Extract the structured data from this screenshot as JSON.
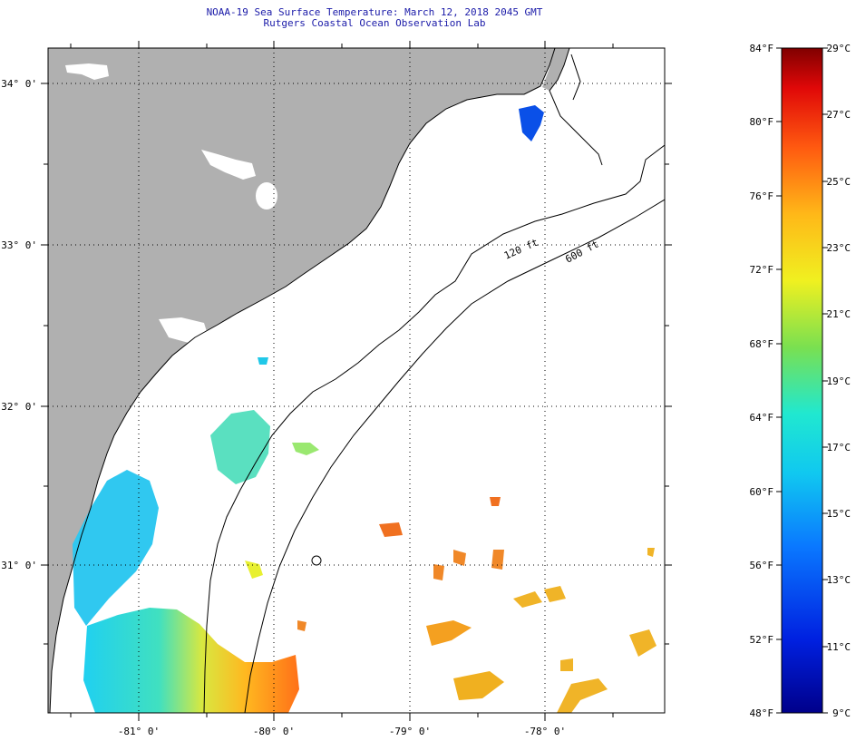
{
  "header": {
    "title_line1": "NOAA-19 Sea Surface Temperature:  March 12, 2018 2045 GMT",
    "title_line2": "Rutgers Coastal Ocean Observation Lab"
  },
  "map": {
    "lon_labels": [
      "-81° 0'",
      "-80° 0'",
      "-79° 0'",
      "-78° 0'"
    ],
    "lat_labels": [
      "34° 0'",
      "33° 0'",
      "32° 0'",
      "31° 0'"
    ],
    "isobath_labels": [
      "120 ft",
      "600 ft"
    ],
    "colors": {
      "land": "#b0b0b0",
      "ocean_missing": "#ffffff",
      "coastline": "#000000",
      "grid": "#000000"
    }
  },
  "colorbar": {
    "fahrenheit_labels": [
      "84°F",
      "80°F",
      "76°F",
      "72°F",
      "68°F",
      "64°F",
      "60°F",
      "56°F",
      "52°F",
      "48°F"
    ],
    "celsius_labels": [
      "29°C",
      "27°C",
      "25°C",
      "23°C",
      "21°C",
      "19°C",
      "17°C",
      "15°C",
      "13°C",
      "11°C",
      "9°C"
    ],
    "range_f": [
      48,
      84
    ],
    "range_c": [
      9,
      29
    ]
  }
}
